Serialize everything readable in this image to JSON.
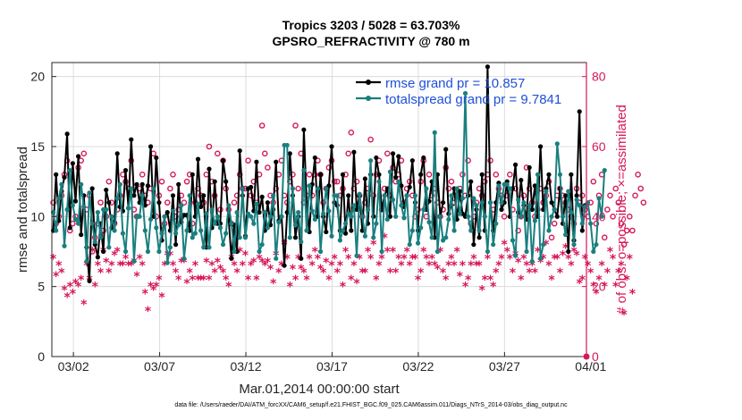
{
  "chart_data": {
    "type": "line",
    "title": "Tropics 3203 / 5028 = 63.703%",
    "subtitle": "GPSRO_REFRACTIVITY @ 780 m",
    "xlabel": "Mar.01,2014 00:00:00 start",
    "ylabel": "rmse and totalspread",
    "y2label": "# of obs: o=possible; ×=assimilated",
    "footer": "data file: /Users/raeder/DAI/ATM_forcXX/CAM6_setup/f.e21.FHIST_BGC.f09_025.CAM6assim.011/Diags_NTrS_2014-03/obs_diag_output.nc",
    "xlim": [
      0,
      31
    ],
    "ylim": [
      0,
      21
    ],
    "y2lim": [
      0,
      84
    ],
    "xticks": [
      1.25,
      6.25,
      11.25,
      16.25,
      21.25,
      26.25,
      31.25
    ],
    "xticklabels": [
      "03/02",
      "03/07",
      "03/12",
      "03/17",
      "03/22",
      "03/27",
      "04/01"
    ],
    "yticks": [
      0,
      5,
      10,
      15,
      20
    ],
    "yticklabels": [
      "0",
      "5",
      "10",
      "15",
      "20"
    ],
    "y2ticks": [
      0,
      20,
      40,
      60,
      80
    ],
    "y2ticklabels": [
      "0",
      "20",
      "40",
      "60",
      "80"
    ],
    "grid": true,
    "legend": "top-right",
    "colors": {
      "rmse": "#000000",
      "spread": "#1a7f7f",
      "obs": "#d6175a",
      "legend_text": "#1f4fd8"
    },
    "series": [
      {
        "name": "rmse grand pr = 10.857",
        "color": "#000000",
        "values": [
          9.0,
          13.0,
          9.7,
          11.8,
          12.8,
          15.9,
          9.2,
          13.8,
          11.1,
          14.3,
          8.7,
          11.5,
          7.8,
          5.4,
          12.0,
          8.0,
          7.1,
          9.5,
          7.5,
          11.9,
          11.0,
          9.2,
          9.6,
          14.5,
          10.7,
          10.4,
          13.3,
          10.6,
          15.5,
          11.5,
          12.3,
          11.0,
          12.3,
          10.8,
          12.2,
          15.0,
          10.0,
          14.2,
          11.0,
          8.3,
          10.0,
          10.3,
          9.0,
          11.5,
          8.0,
          12.3,
          9.6,
          10.1,
          10.1,
          9.0,
          13.0,
          10.0,
          14.1,
          10.7,
          11.5,
          7.8,
          13.4,
          9.2,
          12.5,
          9.5,
          9.5,
          14.0,
          12.5,
          9.8,
          7.0,
          9.4,
          7.5,
          14.7,
          11.5,
          8.6,
          12.0,
          12.1,
          10.4,
          13.9,
          10.3,
          11.4,
          9.0,
          11.0,
          9.4,
          10.5,
          13.9,
          9.7,
          10.0,
          6.5,
          10.3,
          14.5,
          11.5,
          8.5,
          10.0,
          7.0,
          16.2,
          11.0,
          8.9,
          12.3,
          14.2,
          10.0,
          13.0,
          10.0,
          8.9,
          12.2,
          15.0,
          11.0,
          10.8,
          9.0,
          13.0,
          8.8,
          11.5,
          9.0,
          14.6,
          10.5,
          11.5,
          9.0,
          12.7,
          9.5,
          13.0,
          10.0,
          14.2,
          13.0,
          10.5,
          11.5,
          12.0,
          10.0,
          14.5,
          12.8,
          14.3,
          12.2,
          10.7,
          11.5,
          12.1,
          14.0,
          11.0,
          9.0,
          13.0,
          14.2,
          10.5,
          11.1,
          12.5,
          8.5,
          13.0,
          10.0,
          11.0,
          14.8,
          10.2,
          10.8,
          12.0,
          9.8,
          11.8,
          10.2,
          10.0,
          11.5,
          12.5,
          8.0,
          10.5,
          8.5,
          13.0,
          9.0,
          20.7,
          11.0,
          9.0,
          11.0,
          12.4,
          10.5,
          11.0,
          12.5,
          10.0,
          12.0,
          13.7,
          10.3,
          12.6,
          10.8,
          9.8,
          13.5,
          10.5,
          12.2,
          10.0,
          15.0,
          10.5,
          12.0,
          13.0,
          11.0,
          10.5,
          10.0,
          12.0,
          9.5,
          11.5,
          7.5,
          13.0,
          8.3,
          11.5,
          17.5,
          9.0,
          10.8
        ]
      },
      {
        "name": "totalspread grand pr = 9.7841",
        "color": "#1a7f7f",
        "values": [
          10.3,
          9.0,
          11.3,
          12.3,
          7.9,
          10.5,
          13.3,
          10.8,
          9.8,
          9.5,
          12.3,
          10.7,
          6.8,
          11.7,
          9.5,
          8.2,
          10.3,
          8.5,
          10.5,
          10.5,
          7.8,
          10.0,
          9.0,
          11.3,
          12.3,
          8.8,
          7.5,
          10.6,
          12.0,
          6.8,
          10.0,
          10.0,
          11.5,
          9.0,
          7.5,
          9.8,
          12.0,
          9.2,
          7.5,
          8.8,
          10.0,
          6.7,
          7.8,
          10.4,
          8.8,
          9.4,
          10.8,
          7.0,
          9.0,
          11.5,
          8.5,
          8.8,
          10.9,
          9.0,
          7.8,
          10.2,
          7.8,
          10.5,
          9.5,
          10.0,
          9.2,
          8.0,
          8.8,
          10.8,
          9.5,
          7.5,
          10.3,
          8.5,
          12.0,
          8.5,
          10.2,
          10.0,
          9.5,
          10.9,
          7.5,
          8.0,
          10.3,
          9.2,
          10.0,
          11.5,
          7.0,
          9.6,
          10.0,
          15.1,
          15.1,
          8.5,
          12.0,
          9.4,
          10.3,
          8.2,
          13.3,
          9.0,
          12.2,
          10.4,
          9.8,
          12.0,
          7.5,
          10.2,
          12.0,
          10.4,
          8.6,
          11.5,
          11.5,
          8.3,
          9.0,
          9.5,
          10.2,
          10.0,
          10.8,
          7.2,
          11.6,
          10.0,
          8.6,
          10.5,
          14.0,
          8.5,
          9.5,
          12.5,
          7.5,
          11.5,
          9.8,
          13.2,
          11.2,
          10.0,
          12.5,
          10.8,
          9.9,
          11.5,
          8.0,
          9.0,
          11.5,
          8.1,
          9.2,
          10.5,
          12.0,
          9.6,
          8.5,
          16.0,
          7.5,
          10.0,
          8.3,
          8.5,
          9.8,
          11.5,
          9.0,
          12.0,
          10.2,
          11.3,
          18.8,
          10.0,
          9.0,
          11.3,
          10.8,
          9.0,
          11.0,
          10.0,
          7.5,
          11.0,
          8.0,
          9.5,
          12.2,
          11.0,
          12.3,
          12.3,
          12.0,
          8.3,
          7.2,
          11.2,
          10.0,
          11.0,
          7.5,
          10.8,
          6.8,
          9.7,
          13.0,
          7.0,
          8.0,
          11.8,
          9.0,
          10.0,
          10.5,
          15.2,
          13.0,
          10.0,
          8.7,
          11.8,
          10.3,
          8.0,
          11.2,
          10.8,
          9.5,
          10.7,
          11.0,
          9.5,
          7.5,
          8.0,
          11.3,
          10.0,
          13.3
        ]
      },
      {
        "name": "# of obs possible",
        "marker": "o",
        "axis": "right",
        "color": "#d6175a",
        "values": [
          44,
          38,
          40,
          46,
          52,
          56,
          36,
          38,
          40,
          54,
          56,
          58,
          42,
          46,
          30,
          34,
          38,
          44,
          36,
          40,
          50,
          44,
          38,
          42,
          46,
          52,
          50,
          48,
          56,
          42,
          40,
          48,
          52,
          46,
          44,
          48,
          58,
          40,
          46,
          50,
          38,
          44,
          48,
          52,
          40,
          42,
          46,
          44,
          50,
          52,
          38,
          44,
          48,
          46,
          44,
          52,
          60,
          50,
          46,
          58,
          42,
          56,
          48,
          42,
          38,
          44,
          46,
          52,
          48,
          48,
          56,
          46,
          50,
          44,
          52,
          66,
          58,
          54,
          46,
          44,
          48,
          52,
          56,
          46,
          44,
          50,
          52,
          66,
          48,
          58,
          44,
          46,
          52,
          46,
          52,
          56,
          52,
          44,
          48,
          54,
          56,
          50,
          50,
          46,
          48,
          52,
          58,
          64,
          48,
          50,
          46,
          40,
          44,
          48,
          62,
          46,
          52,
          56,
          42,
          48,
          58,
          46,
          54,
          50,
          52,
          56,
          44,
          48,
          50,
          46,
          40,
          42,
          50,
          56,
          40,
          52,
          46,
          48,
          44,
          40,
          42,
          54,
          48,
          50,
          44,
          46,
          48,
          52,
          46,
          56,
          38,
          40,
          44,
          48,
          46,
          50,
          52,
          56,
          42,
          52,
          48,
          46,
          40,
          46,
          52,
          42,
          48,
          36,
          40,
          46,
          54,
          48,
          44,
          40,
          42,
          48,
          44,
          46,
          50,
          34,
          38,
          46,
          48,
          46,
          44,
          42,
          40,
          38,
          48,
          44,
          46,
          42,
          40,
          44,
          50,
          38,
          46,
          52,
          34,
          42,
          46,
          40,
          48,
          44,
          38,
          32,
          36,
          40,
          36,
          46,
          52,
          48,
          44
        ]
      },
      {
        "name": "# of obs assimilated",
        "marker": "*",
        "axis": "right",
        "color": "#d6175a",
        "values": [
          28,
          23,
          26,
          24,
          19,
          17,
          20,
          18,
          21,
          20,
          22,
          15,
          26,
          22,
          30,
          20,
          26,
          24,
          30,
          27,
          24,
          26,
          29,
          30,
          26,
          26,
          28,
          26,
          26,
          27,
          23,
          28,
          26,
          18,
          13,
          20,
          19,
          20,
          22,
          17,
          26,
          29,
          29,
          26,
          24,
          22,
          27,
          27,
          21,
          24,
          22,
          26,
          22,
          22,
          22,
          27,
          22,
          26,
          24,
          27,
          25,
          24,
          22,
          20,
          28,
          26,
          24,
          30,
          26,
          29,
          22,
          26,
          27,
          22,
          28,
          27,
          26,
          27,
          25,
          21,
          29,
          24,
          26,
          32,
          28,
          20,
          25,
          22,
          28,
          25,
          24,
          22,
          28,
          26,
          30,
          28,
          25,
          24,
          27,
          22,
          26,
          28,
          24,
          26,
          20,
          30,
          28,
          22,
          26,
          21,
          28,
          24,
          24,
          30,
          28,
          32,
          22,
          26,
          28,
          34,
          30,
          24,
          30,
          24,
          28,
          26,
          28,
          30,
          26,
          28,
          28,
          22,
          24,
          30,
          28,
          26,
          28,
          26,
          25,
          30,
          24,
          22,
          26,
          28,
          26,
          30,
          23,
          26,
          20,
          22,
          26,
          28,
          26,
          26,
          19,
          22,
          28,
          22,
          20,
          24,
          26,
          28,
          32,
          30,
          28,
          24,
          29,
          27,
          22,
          28,
          26,
          24,
          26,
          24,
          30,
          27,
          28,
          32,
          26,
          22,
          28,
          28,
          24,
          29,
          31,
          28,
          26,
          30,
          29,
          21,
          22,
          28,
          26,
          24,
          20,
          18,
          22,
          26,
          20,
          24,
          30,
          28,
          20,
          24,
          26,
          12,
          22,
          28,
          18
        ]
      }
    ],
    "legend_items": [
      "rmse grand pr = 10.857",
      "totalspread grand pr = 9.7841"
    ]
  }
}
